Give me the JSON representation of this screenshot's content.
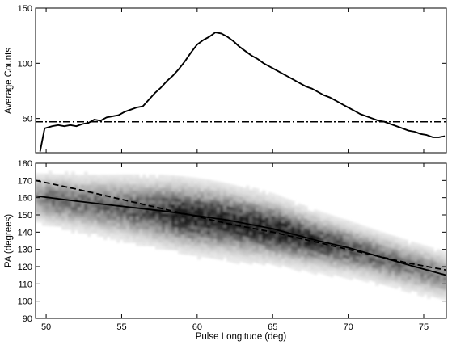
{
  "chart_data": [
    {
      "type": "line",
      "xlabel": "",
      "ylabel": "Average Counts",
      "xlim": [
        49.3,
        76.5
      ],
      "ylim": [
        19,
        150
      ],
      "yticks": [
        50,
        100,
        150
      ],
      "reference_level": 47,
      "series": [
        {
          "style": "solid",
          "x": [
            49.6,
            49.9,
            50.4,
            50.8,
            51.2,
            51.6,
            52.0,
            52.4,
            52.8,
            53.2,
            53.6,
            54.0,
            54.4,
            54.8,
            55.2,
            55.6,
            56.0,
            56.4,
            56.8,
            57.2,
            57.6,
            58.0,
            58.4,
            58.8,
            59.2,
            59.6,
            60.0,
            60.4,
            60.8,
            61.2,
            61.6,
            62.0,
            62.4,
            62.8,
            63.2,
            63.6,
            64.0,
            64.4,
            64.8,
            65.2,
            65.6,
            66.0,
            66.4,
            66.8,
            67.2,
            67.6,
            68.0,
            68.4,
            68.8,
            69.2,
            69.6,
            70.0,
            70.4,
            70.8,
            71.2,
            71.6,
            72.0,
            72.4,
            72.8,
            73.2,
            73.6,
            74.0,
            74.4,
            74.8,
            75.2,
            75.6,
            76.0,
            76.4
          ],
          "y": [
            20,
            41,
            43,
            44,
            43,
            44,
            43,
            45,
            46,
            49,
            48,
            51,
            52,
            53,
            56,
            58,
            60,
            61,
            67,
            73,
            78,
            84,
            89,
            95,
            102,
            110,
            117,
            121,
            124,
            128,
            127,
            124,
            120,
            115,
            111,
            107,
            104,
            100,
            97,
            94,
            91,
            88,
            85,
            82,
            79,
            77,
            74,
            71,
            69,
            66,
            63,
            60,
            57,
            54,
            52,
            50,
            48,
            47,
            45,
            43,
            41,
            39,
            38,
            36,
            35,
            33,
            33,
            34
          ]
        }
      ]
    },
    {
      "type": "heatmap",
      "xlabel": "Pulse Longitude (deg)",
      "ylabel": "PA (degrees)",
      "xlim": [
        49.3,
        76.5
      ],
      "ylim": [
        90,
        180
      ],
      "xticks": [
        50,
        55,
        60,
        65,
        70,
        75
      ],
      "yticks": [
        90,
        100,
        110,
        120,
        130,
        140,
        150,
        160,
        170,
        180
      ],
      "series": [
        {
          "style": "solid",
          "x": [
            49.3,
            52,
            55,
            58,
            60,
            62,
            65,
            68,
            70,
            72,
            74,
            76.5
          ],
          "y": [
            161,
            158,
            155,
            152,
            149.5,
            147,
            142,
            135,
            131,
            126,
            121,
            115
          ]
        },
        {
          "style": "dashed",
          "x": [
            49.3,
            52,
            55,
            58,
            60,
            62,
            65,
            68,
            70,
            72,
            74,
            76.5
          ],
          "y": [
            170,
            165,
            159,
            153,
            149,
            145,
            140,
            134,
            130,
            126,
            122,
            118
          ]
        }
      ]
    }
  ]
}
